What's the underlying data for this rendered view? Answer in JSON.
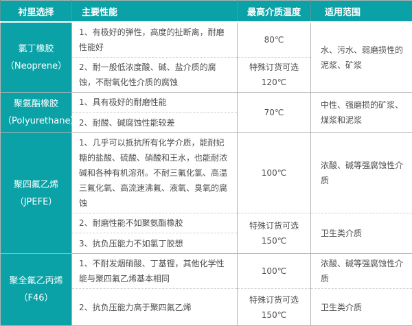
{
  "accent_color": "#0aa2a7",
  "table": {
    "headers": {
      "lining": "衬里选择",
      "performance": "主要性能",
      "max_temp": "最高介质温度",
      "application": "适用范围"
    },
    "groups": [
      {
        "material": "氯丁橡胶",
        "material_en": "（Neoprene）",
        "rows": [
          {
            "perf": "1、有极好的弹性，高度的扯断离，耐磨性能好",
            "temp": "80℃",
            "range": "水、污水、弱磨损性的泥浆、矿浆"
          },
          {
            "perf": "2、耐一般低浓度酸、碱、盐介质的腐蚀，不耐氧化性介质的腐蚀",
            "temp": "特殊订货可选\n120℃"
          }
        ]
      },
      {
        "material": "聚氨酯橡胶",
        "material_en": "（Polyurethane）",
        "rows": [
          {
            "perf": "1、具有极好的耐磨性能",
            "temp": "70℃",
            "range": "中性、强磨损的矿浆、煤浆和泥浆"
          },
          {
            "perf": "2、耐酸、碱腐蚀性能较差"
          }
        ]
      },
      {
        "material": "聚四氟乙烯",
        "material_en": "（JPEFE）",
        "rows": [
          {
            "perf": "1、几乎可以抵抗所有化学介质，能耐妃糖的盐酸、硫酸、硝酸和王水，也能耐浓碱和各种有机溶剂。不耐三氟化氯、高温三氟化氧、高流速沸氟、液氧、臭氧的腐蚀",
            "temp": "100℃",
            "range": "浓酸、碱等强腐蚀性介质"
          },
          {
            "perf": "2、耐磨性能不如聚氨酯橡胶",
            "temp": "特殊订货可选\n150℃",
            "range": "卫生类介质"
          },
          {
            "perf": "3、抗负压能力不如氯丁胶想"
          }
        ]
      },
      {
        "material": "聚全氟乙丙烯",
        "material_en": "（F46）",
        "rows": [
          {
            "perf": "1、不耐发烟硝酸、丁基锂，其他化学性能与聚四氟乙烯基本相同",
            "temp": "100℃",
            "range": "浓酸、碱等强腐蚀性介质"
          },
          {
            "perf": "2、抗负压能力高于聚四氟乙烯",
            "temp": "特殊订货可选\n150℃",
            "range": "卫生类介质"
          }
        ]
      }
    ]
  }
}
